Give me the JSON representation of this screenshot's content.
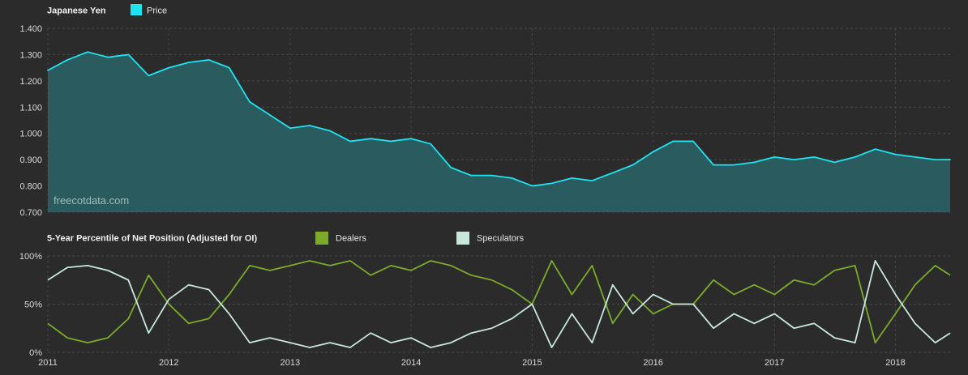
{
  "chart_data": [
    {
      "type": "area",
      "title": "Japanese Yen",
      "legend": [
        {
          "label": "Price",
          "color": "#1ee3f0"
        }
      ],
      "series": [
        {
          "name": "Price",
          "x": [
            "2011-01-01",
            "2011-03-01",
            "2011-05-01",
            "2011-07-01",
            "2011-09-01",
            "2011-11-01",
            "2012-01-01",
            "2012-03-01",
            "2012-05-01",
            "2012-07-01",
            "2012-09-01",
            "2012-11-01",
            "2013-01-01",
            "2013-03-01",
            "2013-05-01",
            "2013-07-01",
            "2013-09-01",
            "2013-11-01",
            "2014-01-01",
            "2014-03-01",
            "2014-05-01",
            "2014-07-01",
            "2014-09-01",
            "2014-11-01",
            "2015-01-01",
            "2015-03-01",
            "2015-05-01",
            "2015-07-01",
            "2015-09-01",
            "2015-11-01",
            "2016-01-01",
            "2016-03-01",
            "2016-05-01",
            "2016-07-01",
            "2016-09-01",
            "2016-11-01",
            "2017-01-01",
            "2017-03-01",
            "2017-05-01",
            "2017-07-01",
            "2017-09-01",
            "2017-11-01",
            "2018-01-01",
            "2018-03-01",
            "2018-05-01",
            "2018-06-15"
          ],
          "values": [
            1.24,
            1.28,
            1.31,
            1.29,
            1.3,
            1.22,
            1.25,
            1.27,
            1.28,
            1.25,
            1.12,
            1.07,
            1.02,
            1.03,
            1.01,
            0.97,
            0.98,
            0.97,
            0.98,
            0.96,
            0.87,
            0.84,
            0.84,
            0.83,
            0.8,
            0.81,
            0.83,
            0.82,
            0.85,
            0.88,
            0.93,
            0.97,
            0.97,
            0.88,
            0.88,
            0.89,
            0.91,
            0.9,
            0.91,
            0.89,
            0.91,
            0.94,
            0.92,
            0.91,
            0.9,
            0.9
          ]
        }
      ],
      "ylim": [
        0.7,
        1.4
      ],
      "y_ticks": [
        "0.700",
        "0.800",
        "0.900",
        "1.000",
        "1.100",
        "1.200",
        "1.300",
        "1.400"
      ],
      "watermark": "freecotdata.com",
      "grid": true,
      "legend_position": "top-left"
    },
    {
      "type": "line",
      "title": "5-Year Percentile of Net Position (Adjusted for OI)",
      "legend": [
        {
          "label": "Dealers",
          "color": "#7cab2a"
        },
        {
          "label": "Speculators",
          "color": "#c9e8dc"
        }
      ],
      "series": [
        {
          "name": "Dealers",
          "x": [
            "2011-01-01",
            "2011-03-01",
            "2011-05-01",
            "2011-07-01",
            "2011-09-01",
            "2011-11-01",
            "2012-01-01",
            "2012-03-01",
            "2012-05-01",
            "2012-07-01",
            "2012-09-01",
            "2012-11-01",
            "2013-01-01",
            "2013-03-01",
            "2013-05-01",
            "2013-07-01",
            "2013-09-01",
            "2013-11-01",
            "2014-01-01",
            "2014-03-01",
            "2014-05-01",
            "2014-07-01",
            "2014-09-01",
            "2014-11-01",
            "2015-01-01",
            "2015-03-01",
            "2015-05-01",
            "2015-07-01",
            "2015-09-01",
            "2015-11-01",
            "2016-01-01",
            "2016-03-01",
            "2016-05-01",
            "2016-07-01",
            "2016-09-01",
            "2016-11-01",
            "2017-01-01",
            "2017-03-01",
            "2017-05-01",
            "2017-07-01",
            "2017-09-01",
            "2017-11-01",
            "2018-01-01",
            "2018-03-01",
            "2018-05-01",
            "2018-06-15"
          ],
          "values": [
            30,
            15,
            10,
            15,
            35,
            80,
            50,
            30,
            35,
            60,
            90,
            85,
            90,
            95,
            90,
            95,
            80,
            90,
            85,
            95,
            90,
            80,
            75,
            65,
            50,
            95,
            60,
            90,
            30,
            60,
            40,
            50,
            50,
            75,
            60,
            70,
            60,
            75,
            70,
            85,
            90,
            10,
            40,
            70,
            90,
            80
          ]
        },
        {
          "name": "Speculators",
          "x": [
            "2011-01-01",
            "2011-03-01",
            "2011-05-01",
            "2011-07-01",
            "2011-09-01",
            "2011-11-01",
            "2012-01-01",
            "2012-03-01",
            "2012-05-01",
            "2012-07-01",
            "2012-09-01",
            "2012-11-01",
            "2013-01-01",
            "2013-03-01",
            "2013-05-01",
            "2013-07-01",
            "2013-09-01",
            "2013-11-01",
            "2014-01-01",
            "2014-03-01",
            "2014-05-01",
            "2014-07-01",
            "2014-09-01",
            "2014-11-01",
            "2015-01-01",
            "2015-03-01",
            "2015-05-01",
            "2015-07-01",
            "2015-09-01",
            "2015-11-01",
            "2016-01-01",
            "2016-03-01",
            "2016-05-01",
            "2016-07-01",
            "2016-09-01",
            "2016-11-01",
            "2017-01-01",
            "2017-03-01",
            "2017-05-01",
            "2017-07-01",
            "2017-09-01",
            "2017-11-01",
            "2018-01-01",
            "2018-03-01",
            "2018-05-01",
            "2018-06-15"
          ],
          "values": [
            75,
            88,
            90,
            85,
            75,
            20,
            55,
            70,
            65,
            40,
            10,
            15,
            10,
            5,
            10,
            5,
            20,
            10,
            15,
            5,
            10,
            20,
            25,
            35,
            50,
            5,
            40,
            10,
            70,
            40,
            60,
            50,
            50,
            25,
            40,
            30,
            40,
            25,
            30,
            15,
            10,
            95,
            60,
            30,
            10,
            20
          ]
        }
      ],
      "ylim": [
        0,
        100
      ],
      "y_ticks": [
        "0%",
        "50%",
        "100%"
      ],
      "x_ticks": [
        "2011",
        "2012",
        "2013",
        "2014",
        "2015",
        "2016",
        "2017",
        "2018"
      ],
      "grid": true,
      "legend_position": "top-left"
    }
  ]
}
